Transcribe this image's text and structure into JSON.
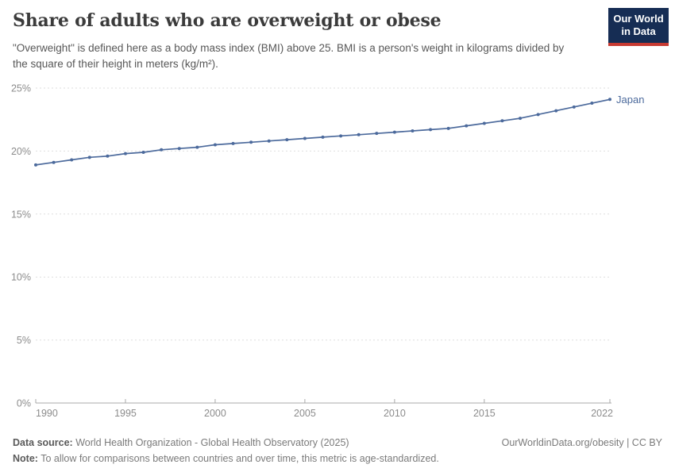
{
  "header": {
    "title": "Share of adults who are overweight or obese",
    "subtitle": "\"Overweight\" is defined here as a body mass index (BMI) above 25. BMI is a person's weight in kilograms divided by the square of their height in meters (kg/m²)."
  },
  "logo": {
    "line1": "Our World",
    "line2": "in Data",
    "bg_color": "#162d54",
    "strip_color": "#c73a32"
  },
  "chart_data": {
    "type": "line",
    "title": "Share of adults who are overweight or obese",
    "unit": "%",
    "x": [
      1990,
      1991,
      1992,
      1993,
      1994,
      1995,
      1996,
      1997,
      1998,
      1999,
      2000,
      2001,
      2002,
      2003,
      2004,
      2005,
      2006,
      2007,
      2008,
      2009,
      2010,
      2011,
      2012,
      2013,
      2014,
      2015,
      2016,
      2017,
      2018,
      2019,
      2020,
      2021,
      2022
    ],
    "series": [
      {
        "name": "Japan",
        "color": "#4c6a9c",
        "values": [
          18.9,
          19.1,
          19.3,
          19.5,
          19.6,
          19.8,
          19.9,
          20.1,
          20.2,
          20.3,
          20.5,
          20.6,
          20.7,
          20.8,
          20.9,
          21.0,
          21.1,
          21.2,
          21.3,
          21.4,
          21.5,
          21.6,
          21.7,
          21.8,
          22.0,
          22.2,
          22.4,
          22.6,
          22.9,
          23.2,
          23.5,
          23.8,
          24.1
        ]
      }
    ],
    "x_ticks": [
      1990,
      1995,
      2000,
      2005,
      2010,
      2015,
      2022
    ],
    "y_ticks": [
      0,
      5,
      10,
      15,
      20,
      25
    ],
    "y_tick_suffix": "%",
    "xlim": [
      1990,
      2022
    ],
    "ylim": [
      0,
      25
    ],
    "grid": "horizontal-dashed",
    "legend_position": "end-of-line",
    "axis_text_color": "#8c8c8c",
    "grid_color": "#dedede",
    "axis_line_color": "#a8a8a8"
  },
  "footer": {
    "data_source_label": "Data source:",
    "data_source_text": " World Health Organization - Global Health Observatory (2025)",
    "attribution": "OurWorldinData.org/obesity | CC BY",
    "note_label": "Note:",
    "note_text": " To allow for comparisons between countries and over time, this metric is age-standardized."
  }
}
